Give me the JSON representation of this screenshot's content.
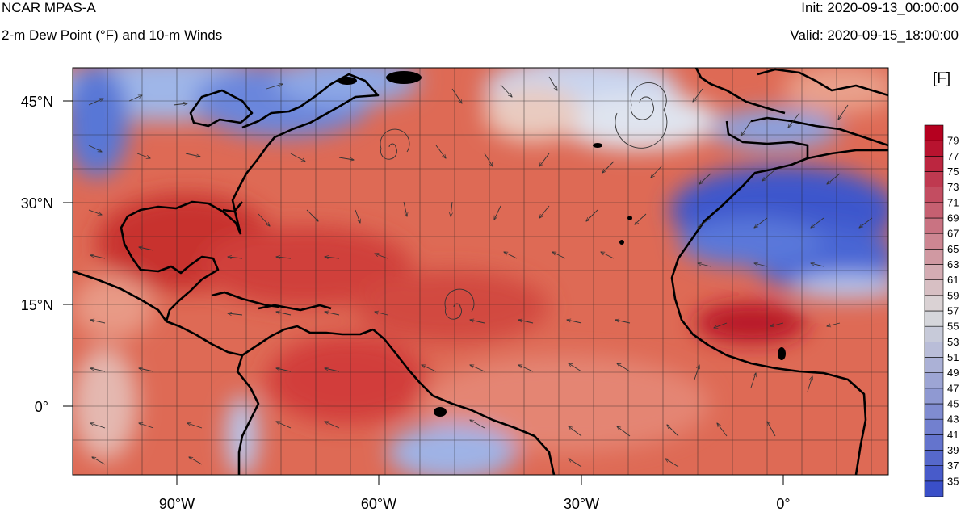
{
  "header": {
    "model": "NCAR MPAS-A",
    "field": "2-m Dew Point (°F) and 10-m Winds",
    "init": "Init: 2020-09-13_00:00:00",
    "valid": "Valid: 2020-09-15_18:00:00"
  },
  "map": {
    "lon_range": [
      -105,
      12
    ],
    "lat_range": [
      -10,
      50
    ],
    "lon_ticks": [
      {
        "value": -90,
        "label": "90°W"
      },
      {
        "value": -60,
        "label": "60°W"
      },
      {
        "value": -30,
        "label": "30°W"
      },
      {
        "value": 0,
        "label": "0°"
      }
    ],
    "lat_ticks": [
      {
        "value": 45,
        "label": "45°N"
      },
      {
        "value": 30,
        "label": "30°N"
      },
      {
        "value": 15,
        "label": "15°N"
      },
      {
        "value": 0,
        "label": "0°"
      }
    ],
    "gridlines": true,
    "grid_spacing_deg": 5
  },
  "colorbar": {
    "unit": "[F]",
    "placement": "right",
    "labels": [
      "35",
      "37",
      "39",
      "41",
      "43",
      "45",
      "47",
      "49",
      "51",
      "53",
      "55",
      "57",
      "59",
      "61",
      "63",
      "65",
      "67",
      "69",
      "71",
      "73",
      "75",
      "77",
      "79"
    ],
    "low_color": "#3a4fc8",
    "mid_color": "#dcdcdc",
    "high_color": "#b5001f"
  }
}
